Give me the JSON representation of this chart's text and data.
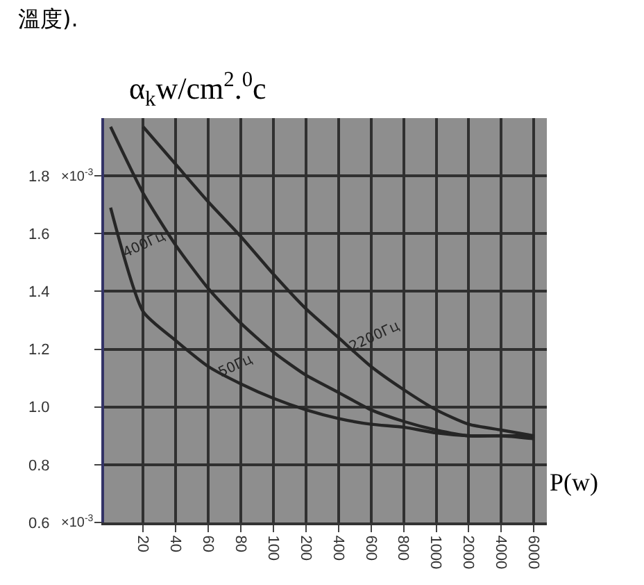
{
  "chart_data": {
    "type": "line",
    "ylabel": "α$_{k}$w/cm$^{2}$.$^{0}$c",
    "xlabel": "P(w)",
    "annotations": [
      "溫度).",
      "×10$^{-3}$",
      "×10$^{-3}$"
    ],
    "categories": [
      null,
      "20",
      "40",
      "60",
      "80",
      "100",
      "200",
      "400",
      "600",
      "800",
      "1000",
      "2000",
      "4000",
      "6000"
    ],
    "series": [
      {
        "name": "400Гц",
        "color": "#262626",
        "values": [
          1.97,
          1.74,
          1.56,
          1.41,
          1.29,
          1.19,
          1.11,
          1.05,
          0.99,
          0.95,
          0.92,
          0.9,
          0.9,
          0.89
        ]
      },
      {
        "name": "50Гц",
        "color": "#262626",
        "values": [
          1.69,
          1.33,
          1.23,
          1.14,
          1.08,
          1.03,
          0.99,
          0.96,
          0.94,
          0.93,
          0.91,
          0.9,
          0.9,
          0.9
        ]
      },
      {
        "name": "2200Гц",
        "color": "#262626",
        "values": [
          null,
          1.97,
          1.84,
          1.71,
          1.59,
          1.46,
          1.34,
          1.24,
          1.14,
          1.06,
          0.99,
          0.94,
          0.92,
          0.9
        ]
      }
    ],
    "ylim": [
      0.6,
      2.0
    ],
    "yticks": [
      {
        "value": 0.6,
        "label": "0.6"
      },
      0.8,
      {
        "value": 1.0,
        "label": "1.0"
      },
      1.2,
      1.4,
      1.6,
      {
        "value": 1.8,
        "label": "1.8"
      }
    ],
    "grid": true,
    "marker": "none",
    "line_style": "solid",
    "legend": false
  }
}
